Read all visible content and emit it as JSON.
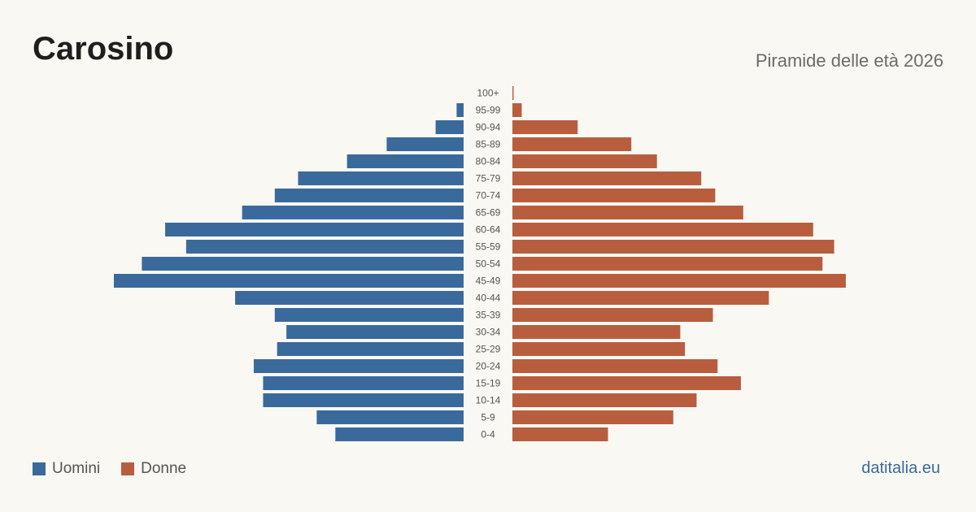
{
  "header": {
    "title": "Carosino",
    "subtitle": "Piramide delle età 2026"
  },
  "footer": {
    "brand": "datitalia.eu"
  },
  "colors": {
    "men": "#3a6a9b",
    "women": "#b85e3e",
    "background": "#faf8f3"
  },
  "chart_data": {
    "type": "bar",
    "orientation": "horizontal",
    "layout": "population-pyramid",
    "title": "Carosino",
    "subtitle": "Piramide delle età 2026",
    "categories": [
      "100+",
      "95-99",
      "90-94",
      "85-89",
      "80-84",
      "75-79",
      "70-74",
      "65-69",
      "60-64",
      "55-59",
      "50-54",
      "45-49",
      "40-44",
      "35-39",
      "30-34",
      "25-29",
      "20-24",
      "15-19",
      "10-14",
      "5-9",
      "0-4"
    ],
    "series": [
      {
        "name": "Uomini",
        "side": "left",
        "color": "#3a6a9b",
        "values": [
          0,
          3,
          12,
          33,
          50,
          71,
          81,
          95,
          128,
          119,
          138,
          150,
          98,
          81,
          76,
          80,
          90,
          86,
          86,
          63,
          55
        ]
      },
      {
        "name": "Donne",
        "side": "right",
        "color": "#b85e3e",
        "values": [
          0.5,
          4,
          28,
          51,
          62,
          81,
          87,
          99,
          129,
          138,
          133,
          143,
          110,
          86,
          72,
          74,
          88,
          98,
          79,
          69,
          41
        ]
      }
    ],
    "xlim": [
      0,
      150
    ],
    "grid": false,
    "legend_position": "bottom-left"
  }
}
